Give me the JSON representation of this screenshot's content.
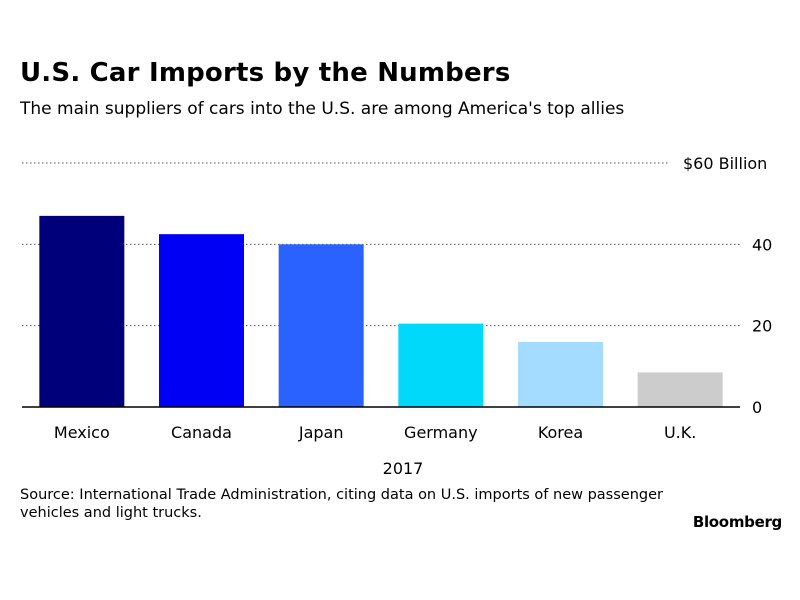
{
  "title": "U.S. Car Imports by the Numbers",
  "subtitle": "The main suppliers of cars into the U.S. are among America's top allies",
  "source": "Source: International Trade Administration, citing data on U.S. imports of new passenger vehicles and light trucks.",
  "logo": "Bloomberg",
  "chart_data": {
    "type": "bar",
    "categories": [
      "Mexico",
      "Canada",
      "Japan",
      "Germany",
      "Korea",
      "U.K."
    ],
    "values": [
      47,
      42.5,
      40,
      20.5,
      16,
      8.5
    ],
    "colors": [
      "#00007a",
      "#0000f5",
      "#2a62ff",
      "#00d9fa",
      "#a3dcff",
      "#cccccc"
    ],
    "xlabel": "2017",
    "ylim": [
      0,
      60
    ],
    "yticks": [
      0,
      20,
      40,
      60
    ],
    "ytick_labels": [
      "0",
      "20",
      "40",
      "$60 Billion"
    ],
    "grid": true,
    "grid_style": "dotted",
    "y_axis_side": "right"
  }
}
